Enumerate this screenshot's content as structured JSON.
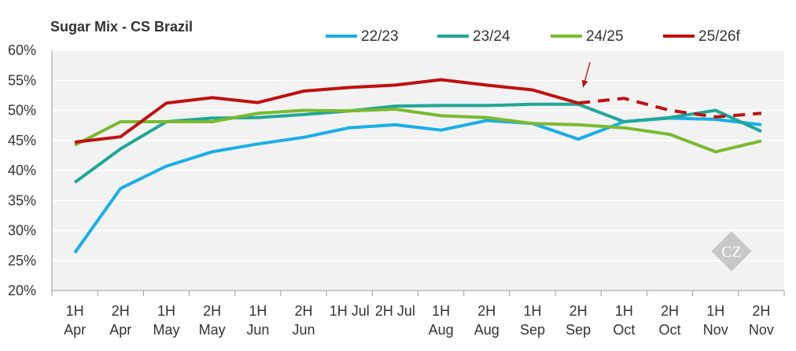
{
  "chart_data": {
    "type": "line",
    "title": "Sugar Mix - CS Brazil",
    "xlabel": "",
    "ylabel": "",
    "ylim": [
      0.2,
      0.6
    ],
    "yticks": [
      0.2,
      0.25,
      0.3,
      0.35,
      0.4,
      0.45,
      0.5,
      0.55,
      0.6
    ],
    "ytick_labels": [
      "20%",
      "25%",
      "30%",
      "35%",
      "40%",
      "45%",
      "50%",
      "55%",
      "60%"
    ],
    "categories": [
      [
        "1H",
        "Apr"
      ],
      [
        "2H",
        "Apr"
      ],
      [
        "1H",
        "May"
      ],
      [
        "2H",
        "May"
      ],
      [
        "1H",
        "Jun"
      ],
      [
        "2H",
        "Jun"
      ],
      [
        "1H Jul"
      ],
      [
        "2H Jul"
      ],
      [
        "1H",
        "Aug"
      ],
      [
        "2H",
        "Aug"
      ],
      [
        "1H",
        "Sep"
      ],
      [
        "2H",
        "Sep"
      ],
      [
        "1H",
        "Oct"
      ],
      [
        "2H",
        "Oct"
      ],
      [
        "1H",
        "Nov"
      ],
      [
        "2H",
        "Nov"
      ]
    ],
    "legend_position": "top",
    "series": [
      {
        "name": "22/23",
        "color": "#1aaee8",
        "values": [
          0.263,
          0.37,
          0.407,
          0.431,
          0.444,
          0.455,
          0.471,
          0.476,
          0.467,
          0.483,
          0.478,
          0.452,
          0.481,
          0.487,
          0.485,
          0.476
        ]
      },
      {
        "name": "23/24",
        "color": "#1fa797",
        "values": [
          0.38,
          0.436,
          0.481,
          0.487,
          0.488,
          0.493,
          0.499,
          0.507,
          0.508,
          0.508,
          0.51,
          0.51,
          0.481,
          0.488,
          0.5,
          0.465
        ]
      },
      {
        "name": "24/25",
        "color": "#7aba2f",
        "values": [
          0.442,
          0.481,
          0.481,
          0.481,
          0.495,
          0.5,
          0.499,
          0.502,
          0.491,
          0.488,
          0.478,
          0.476,
          0.471,
          0.46,
          0.431,
          0.449
        ]
      },
      {
        "name": "25/26f",
        "color": "#c0100f",
        "values": [
          0.447,
          0.456,
          0.512,
          0.521,
          0.513,
          0.532,
          0.538,
          0.542,
          0.551,
          0.542,
          0.534,
          0.512,
          0.52,
          0.5,
          0.489,
          0.495
        ],
        "forecast_from_index": 11
      }
    ],
    "annotations": [
      {
        "type": "arrow",
        "target_series": "25/26f",
        "target_index": 11,
        "color": "#c0100f"
      }
    ]
  },
  "watermark": {
    "text": "CZ",
    "color": "#c8c8c8"
  }
}
